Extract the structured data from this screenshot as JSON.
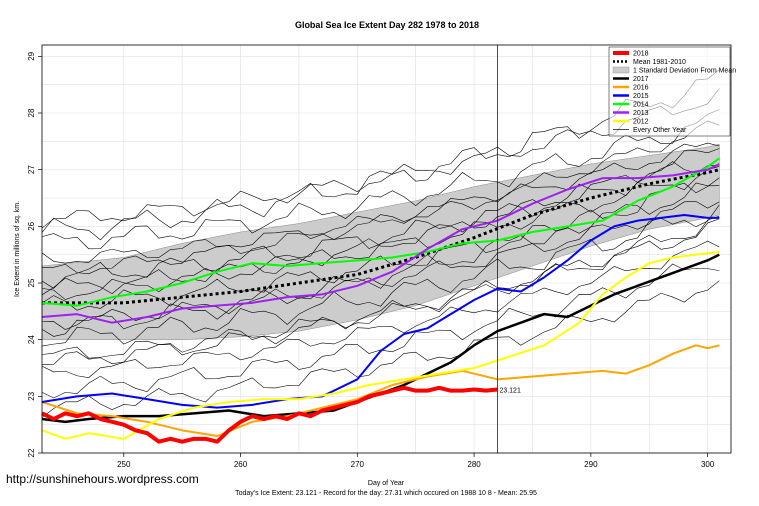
{
  "source_url": "http://sunshinehours.wordpress.com",
  "chart_data": {
    "type": "line",
    "title": "Global Sea Ice Extent Day 282 1978 to 2018",
    "xlabel": "Day of Year",
    "ylabel": "Ice Extent in millions of sq. km.",
    "footer": "Today's Ice Extent: 23.121  - Record for the day: 27.31 which occured on 1988 10 8  - Mean: 25.95",
    "xlim": [
      243,
      302
    ],
    "ylim": [
      22,
      29.2
    ],
    "xticks": [
      "250",
      "260",
      "270",
      "280",
      "290",
      "300"
    ],
    "yticks": [
      "22",
      "23",
      "24",
      "25",
      "26",
      "27",
      "28",
      "29"
    ],
    "grid": true,
    "today_marker": {
      "x": 282,
      "y": 23.121,
      "label": "23.121"
    },
    "legend_position": "top-right",
    "legend": [
      {
        "label": "2018",
        "color": "#ff0000",
        "style": "solid"
      },
      {
        "label": "Mean 1981-2010",
        "color": "#000000",
        "style": "dotted"
      },
      {
        "label": "1 Standard Deviation From Mean",
        "color": "#cccccc",
        "style": "box"
      },
      {
        "label": "2017",
        "color": "#000000",
        "style": "solid"
      },
      {
        "label": "2016",
        "color": "#ffa500",
        "style": "solid"
      },
      {
        "label": "2015",
        "color": "#0000ff",
        "style": "solid"
      },
      {
        "label": "2014",
        "color": "#00ff00",
        "style": "solid"
      },
      {
        "label": "2013",
        "color": "#a020f0",
        "style": "solid"
      },
      {
        "label": "2012",
        "color": "#ffff00",
        "style": "solid"
      },
      {
        "label": "Every Other Year",
        "color": "#000000",
        "style": "thin"
      }
    ],
    "band": {
      "x": [
        243,
        250,
        255,
        260,
        265,
        270,
        275,
        280,
        285,
        290,
        295,
        300,
        301
      ],
      "upper": [
        25.3,
        25.45,
        25.7,
        25.9,
        26.05,
        26.25,
        26.45,
        26.7,
        26.9,
        27.1,
        27.25,
        27.4,
        27.45
      ],
      "lower": [
        24.0,
        24.0,
        24.0,
        24.05,
        24.15,
        24.35,
        24.6,
        24.95,
        25.3,
        25.65,
        25.95,
        26.15,
        26.2
      ]
    },
    "mean": {
      "x": [
        243,
        250,
        255,
        260,
        265,
        270,
        275,
        280,
        285,
        290,
        295,
        300,
        301
      ],
      "y": [
        24.65,
        24.65,
        24.75,
        24.85,
        25.0,
        25.15,
        25.45,
        25.8,
        26.2,
        26.5,
        26.75,
        26.95,
        27.0
      ]
    },
    "series": [
      {
        "name": "2018",
        "color": "#ff0000",
        "width": 4,
        "x": [
          243,
          244,
          245,
          246,
          247,
          248,
          249,
          250,
          251,
          252,
          253,
          254,
          255,
          256,
          257,
          258,
          259,
          260,
          261,
          262,
          263,
          264,
          265,
          266,
          267,
          268,
          269,
          270,
          271,
          272,
          273,
          274,
          275,
          276,
          277,
          278,
          279,
          280,
          281,
          282
        ],
        "y": [
          22.7,
          22.6,
          22.7,
          22.65,
          22.7,
          22.6,
          22.55,
          22.5,
          22.4,
          22.35,
          22.2,
          22.25,
          22.2,
          22.25,
          22.25,
          22.2,
          22.4,
          22.55,
          22.65,
          22.6,
          22.65,
          22.6,
          22.7,
          22.65,
          22.75,
          22.8,
          22.85,
          22.9,
          23.0,
          23.05,
          23.1,
          23.15,
          23.1,
          23.1,
          23.15,
          23.1,
          23.1,
          23.12,
          23.1,
          23.121
        ]
      },
      {
        "name": "2017",
        "color": "#000000",
        "width": 2.5,
        "x": [
          243,
          245,
          247,
          250,
          253,
          256,
          259,
          262,
          265,
          268,
          270,
          272,
          274,
          276,
          278,
          280,
          282,
          284,
          286,
          288,
          290,
          292,
          294,
          296,
          298,
          300,
          301
        ],
        "y": [
          22.6,
          22.55,
          22.6,
          22.65,
          22.65,
          22.7,
          22.75,
          22.65,
          22.7,
          22.75,
          22.9,
          23.05,
          23.2,
          23.4,
          23.6,
          23.9,
          24.15,
          24.3,
          24.45,
          24.4,
          24.6,
          24.8,
          24.95,
          25.1,
          25.25,
          25.4,
          25.5
        ]
      },
      {
        "name": "2016",
        "color": "#ffa500",
        "width": 2,
        "x": [
          243,
          246,
          249,
          252,
          255,
          258,
          261,
          264,
          267,
          270,
          273,
          276,
          279,
          282,
          285,
          288,
          291,
          293,
          295,
          297,
          299,
          300,
          301
        ],
        "y": [
          22.9,
          22.7,
          22.65,
          22.55,
          22.4,
          22.3,
          22.55,
          22.65,
          22.8,
          22.95,
          23.2,
          23.35,
          23.45,
          23.3,
          23.35,
          23.4,
          23.45,
          23.4,
          23.55,
          23.75,
          23.9,
          23.85,
          23.9
        ]
      },
      {
        "name": "2015",
        "color": "#0000ff",
        "width": 2,
        "x": [
          243,
          246,
          249,
          252,
          255,
          258,
          261,
          264,
          267,
          270,
          272,
          274,
          276,
          278,
          280,
          282,
          284,
          286,
          288,
          290,
          292,
          294,
          296,
          298,
          300,
          301
        ],
        "y": [
          22.9,
          23.0,
          23.05,
          22.95,
          22.85,
          22.8,
          22.85,
          22.95,
          23.0,
          23.3,
          23.8,
          24.1,
          24.2,
          24.45,
          24.7,
          24.9,
          24.85,
          25.1,
          25.4,
          25.75,
          26.0,
          26.1,
          26.15,
          26.2,
          26.15,
          26.15
        ]
      },
      {
        "name": "2014",
        "color": "#00ff00",
        "width": 2,
        "x": [
          243,
          246,
          249,
          252,
          255,
          258,
          261,
          264,
          267,
          270,
          273,
          276,
          279,
          282,
          285,
          288,
          291,
          294,
          297,
          300,
          301
        ],
        "y": [
          24.65,
          24.6,
          24.75,
          24.85,
          25.0,
          25.2,
          25.35,
          25.3,
          25.35,
          25.4,
          25.45,
          25.55,
          25.7,
          25.75,
          25.9,
          26.0,
          26.1,
          26.45,
          26.7,
          27.05,
          27.2
        ]
      },
      {
        "name": "2013",
        "color": "#a020f0",
        "width": 2,
        "x": [
          243,
          246,
          249,
          252,
          255,
          258,
          261,
          264,
          267,
          270,
          273,
          276,
          279,
          282,
          285,
          288,
          291,
          294,
          297,
          300,
          301
        ],
        "y": [
          24.4,
          24.45,
          24.3,
          24.4,
          24.55,
          24.6,
          24.65,
          24.75,
          24.8,
          24.95,
          25.2,
          25.6,
          25.95,
          26.1,
          26.4,
          26.65,
          26.85,
          26.85,
          26.9,
          27.0,
          27.1
        ]
      },
      {
        "name": "2012",
        "color": "#ffff00",
        "width": 2,
        "x": [
          243,
          245,
          247,
          250,
          253,
          256,
          259,
          262,
          265,
          268,
          271,
          274,
          277,
          280,
          283,
          286,
          289,
          291,
          293,
          295,
          297,
          299,
          301
        ],
        "y": [
          22.4,
          22.25,
          22.35,
          22.25,
          22.6,
          22.8,
          22.9,
          22.95,
          22.95,
          23.05,
          23.2,
          23.3,
          23.4,
          23.5,
          23.7,
          23.9,
          24.3,
          24.8,
          25.1,
          25.35,
          25.45,
          25.5,
          25.55
        ]
      }
    ],
    "background_years": [
      {
        "start": 26.1,
        "end": 28.3,
        "wobble": 0.12
      },
      {
        "start": 25.7,
        "end": 27.9,
        "wobble": 0.15
      },
      {
        "start": 25.4,
        "end": 27.5,
        "wobble": 0.1
      },
      {
        "start": 25.1,
        "end": 27.2,
        "wobble": 0.14
      },
      {
        "start": 24.9,
        "end": 27.0,
        "wobble": 0.12
      },
      {
        "start": 24.6,
        "end": 26.7,
        "wobble": 0.13
      },
      {
        "start": 24.3,
        "end": 26.5,
        "wobble": 0.11
      },
      {
        "start": 24.0,
        "end": 26.3,
        "wobble": 0.15
      },
      {
        "start": 23.7,
        "end": 26.0,
        "wobble": 0.12
      },
      {
        "start": 23.4,
        "end": 25.7,
        "wobble": 0.1
      },
      {
        "start": 23.1,
        "end": 25.4,
        "wobble": 0.13
      },
      {
        "start": 22.8,
        "end": 25.0,
        "wobble": 0.12
      },
      {
        "start": 25.9,
        "end": 28.6,
        "wobble": 0.16
      },
      {
        "start": 24.8,
        "end": 27.4,
        "wobble": 0.11
      },
      {
        "start": 24.2,
        "end": 26.9,
        "wobble": 0.14
      },
      {
        "start": 23.6,
        "end": 26.1,
        "wobble": 0.12
      },
      {
        "start": 25.2,
        "end": 27.8,
        "wobble": 0.1
      }
    ]
  }
}
